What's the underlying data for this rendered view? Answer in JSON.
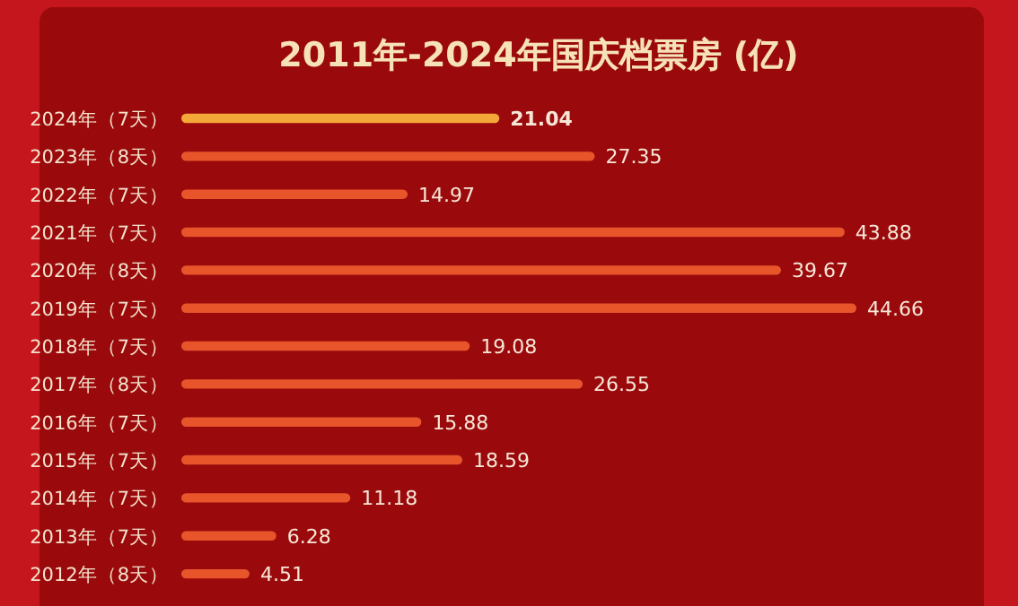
{
  "chart_data": {
    "type": "bar",
    "orientation": "horizontal",
    "title": "2011年-2024年国庆档票房 (亿)",
    "categories": [
      "2024年（7天）",
      "2023年（8天）",
      "2022年（7天）",
      "2021年（7天）",
      "2020年（8天）",
      "2019年（7天）",
      "2018年（7天）",
      "2017年（8天）",
      "2016年（7天）",
      "2015年（7天）",
      "2014年（7天）",
      "2013年（7天）",
      "2012年（8天）"
    ],
    "values": [
      21.04,
      27.35,
      14.97,
      43.88,
      39.67,
      44.66,
      19.08,
      26.55,
      15.88,
      18.59,
      11.18,
      6.28,
      4.51
    ],
    "colors": [
      "#f5a83a",
      "#e8552b",
      "#e8552b",
      "#e8552b",
      "#e8552b",
      "#e8552b",
      "#e8552b",
      "#e8552b",
      "#e8552b",
      "#e8552b",
      "#e8552b",
      "#e8552b",
      "#e8552b"
    ],
    "data_labels": true
  }
}
